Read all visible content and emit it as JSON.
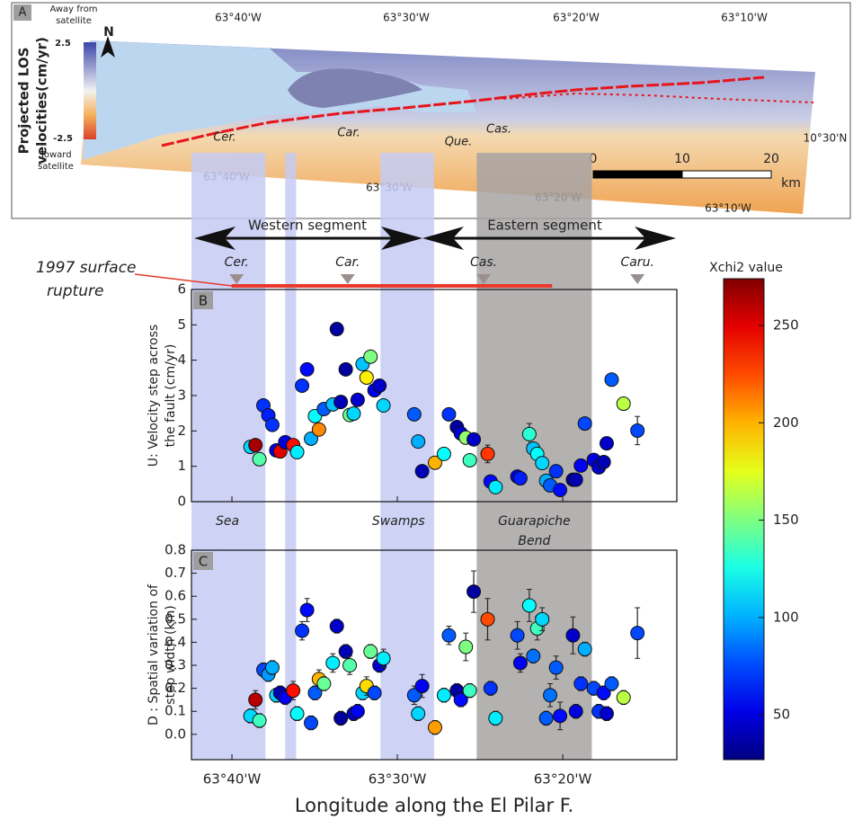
{
  "map": {
    "panel_label": "A",
    "los_title": [
      "Projected LOS",
      "velocities(cm/yr)"
    ],
    "away": [
      "Away from",
      "satellite"
    ],
    "toward": [
      "Toward",
      "satellite"
    ],
    "los_ticks": [
      2.5,
      -2.5
    ],
    "north": "N",
    "towns": [
      "Cer.",
      "Car.",
      "Que.",
      "Cas."
    ],
    "top_lon": [
      "63°40'W",
      "63°30'W",
      "63°20'W",
      "63°10'W"
    ],
    "bottom_lon": [
      "63°40'W",
      "63°30'W",
      "63°20'W",
      "63°10'W"
    ],
    "lat": "10°30'N",
    "scale_ticks": [
      0,
      10,
      20
    ],
    "scale_unit": "km"
  },
  "overlay": {
    "bands": [
      {
        "from": -63.7075,
        "to": -63.633,
        "color": "#c6cbf4",
        "label": [
          "Sea"
        ]
      },
      {
        "from": -63.613,
        "to": -63.602,
        "color": "#c6cbf4"
      },
      {
        "from": -63.517,
        "to": -63.463,
        "color": "#c6cbf4",
        "label": [
          "Swamps"
        ]
      },
      {
        "from": -63.42,
        "to": -63.304,
        "color": "#a7a3a3",
        "label": [
          "Guarapiche",
          "Bend"
        ]
      }
    ],
    "segments": [
      "Western segment",
      "Eastern segment"
    ],
    "towns": [
      {
        "name": "Cer.",
        "lon": -63.662
      },
      {
        "name": "Car.",
        "lon": -63.55
      },
      {
        "name": "Cas.",
        "lon": -63.413
      },
      {
        "name": "Caru.",
        "lon": -63.258
      }
    ],
    "rupture": {
      "label": [
        "1997 surface",
        "rupture"
      ],
      "from": -63.667,
      "to": -63.344,
      "color": "#e8392c"
    }
  },
  "colorbar": {
    "title": "Xchi2 value",
    "range": [
      27,
      274
    ],
    "ticks": [
      50,
      100,
      150,
      200,
      250
    ]
  },
  "xlabel": "Longitude along the El Pilar F.",
  "chart_data": [
    {
      "type": "scatter",
      "panel_label": "B",
      "ylabel": [
        "U: Velocity step across",
        "the fault (cm/yr)"
      ],
      "x": [
        -63.648,
        -63.643,
        -63.639,
        -63.635,
        -63.63,
        -63.626,
        -63.622,
        -63.618,
        -63.613,
        -63.605,
        -63.601,
        -63.596,
        -63.591,
        -63.587,
        -63.583,
        -63.579,
        -63.574,
        -63.565,
        -63.561,
        -63.557,
        -63.552,
        -63.548,
        -63.544,
        -63.54,
        -63.535,
        -63.531,
        -63.527,
        -63.523,
        -63.518,
        -63.514,
        -63.483,
        -63.479,
        -63.475,
        -63.462,
        -63.453,
        -63.448,
        -63.44,
        -63.436,
        -63.431,
        -63.427,
        -63.423,
        -63.409,
        -63.406,
        -63.401,
        -63.379,
        -63.376,
        -63.367,
        -63.363,
        -63.359,
        -63.354,
        -63.35,
        -63.346,
        -63.34,
        -63.336,
        -63.323,
        -63.32,
        -63.315,
        -63.311,
        -63.302,
        -63.297,
        -63.292,
        -63.289,
        -63.284,
        -63.272,
        -63.258
      ],
      "values": [
        1.55,
        1.6,
        1.2,
        2.72,
        2.44,
        2.17,
        1.45,
        1.42,
        1.68,
        1.6,
        1.4,
        3.28,
        3.74,
        1.78,
        2.42,
        2.04,
        2.62,
        2.75,
        4.88,
        2.82,
        3.74,
        2.45,
        2.49,
        2.88,
        3.89,
        3.51,
        4.1,
        3.15,
        3.28,
        2.72,
        2.47,
        1.7,
        0.86,
        1.1,
        1.35,
        2.47,
        2.11,
        1.93,
        1.81,
        1.17,
        1.76,
        1.35,
        0.57,
        0.41,
        0.71,
        0.66,
        1.91,
        1.5,
        1.35,
        1.09,
        0.59,
        0.46,
        0.86,
        0.33,
        0.62,
        0.62,
        1.02,
        2.21,
        1.18,
        0.97,
        1.12,
        1.65,
        3.45,
        2.77,
        2.01
      ],
      "errors": [
        0.1,
        0.1,
        0.1,
        0.1,
        0.1,
        0.1,
        0.1,
        0.1,
        0.1,
        0.1,
        0.1,
        0.15,
        0.15,
        0.1,
        0.1,
        0.1,
        0.1,
        0.1,
        0.12,
        0.1,
        0.1,
        0.15,
        0.1,
        0.1,
        0.1,
        0.15,
        0.1,
        0.1,
        0.1,
        0.1,
        0.12,
        0.1,
        0.1,
        0.1,
        0.1,
        0.1,
        0.1,
        0.1,
        0.1,
        0.12,
        0.1,
        0.25,
        0.1,
        0.1,
        0.1,
        0.1,
        0.3,
        0.1,
        0.1,
        0.1,
        0.1,
        0.1,
        0.12,
        0.1,
        0.1,
        0.1,
        0.1,
        0.15,
        0.1,
        0.1,
        0.1,
        0.1,
        0.12,
        0.15,
        0.4
      ],
      "color_values": [
        110,
        265,
        140,
        70,
        65,
        70,
        55,
        250,
        50,
        240,
        115,
        70,
        60,
        100,
        120,
        210,
        80,
        105,
        35,
        40,
        35,
        145,
        110,
        45,
        105,
        185,
        150,
        55,
        45,
        110,
        80,
        100,
        40,
        200,
        120,
        70,
        35,
        50,
        155,
        135,
        45,
        230,
        60,
        115,
        55,
        65,
        130,
        105,
        120,
        110,
        100,
        80,
        70,
        60,
        35,
        40,
        55,
        75,
        50,
        45,
        40,
        45,
        80,
        165,
        75
      ],
      "xlim": [
        -63.7075,
        -63.2183
      ],
      "ylim": [
        0,
        6
      ],
      "yticks": [
        0,
        1,
        2,
        3,
        4,
        5,
        6
      ]
    },
    {
      "type": "scatter",
      "panel_label": "C",
      "ylabel": [
        "D : Spatial variation of",
        "step width (km)"
      ],
      "x": [
        -63.648,
        -63.643,
        -63.639,
        -63.635,
        -63.63,
        -63.626,
        -63.622,
        -63.618,
        -63.613,
        -63.605,
        -63.601,
        -63.596,
        -63.591,
        -63.587,
        -63.583,
        -63.579,
        -63.574,
        -63.565,
        -63.561,
        -63.557,
        -63.552,
        -63.548,
        -63.544,
        -63.54,
        -63.535,
        -63.531,
        -63.527,
        -63.523,
        -63.518,
        -63.514,
        -63.483,
        -63.479,
        -63.475,
        -63.462,
        -63.453,
        -63.448,
        -63.44,
        -63.436,
        -63.431,
        -63.427,
        -63.423,
        -63.409,
        -63.406,
        -63.401,
        -63.379,
        -63.376,
        -63.367,
        -63.363,
        -63.359,
        -63.354,
        -63.35,
        -63.346,
        -63.34,
        -63.336,
        -63.323,
        -63.32,
        -63.315,
        -63.311,
        -63.302,
        -63.297,
        -63.292,
        -63.289,
        -63.284,
        -63.272,
        -63.258
      ],
      "values": [
        0.08,
        0.15,
        0.06,
        0.28,
        0.26,
        0.29,
        0.17,
        0.18,
        0.16,
        0.19,
        0.09,
        0.45,
        0.54,
        0.05,
        0.18,
        0.24,
        0.22,
        0.31,
        0.47,
        0.07,
        0.36,
        0.3,
        0.09,
        0.1,
        0.18,
        0.21,
        0.36,
        0.18,
        0.3,
        0.33,
        0.17,
        0.09,
        0.21,
        0.03,
        0.17,
        0.43,
        0.19,
        0.15,
        0.38,
        0.19,
        0.62,
        0.5,
        0.2,
        0.07,
        0.43,
        0.31,
        0.56,
        0.34,
        0.46,
        0.5,
        0.07,
        0.17,
        0.29,
        0.08,
        0.43,
        0.1,
        0.22,
        0.37,
        0.2,
        0.1,
        0.18,
        0.09,
        0.22,
        0.16,
        0.44
      ],
      "errors": [
        0.03,
        0.04,
        0.03,
        0.03,
        0.03,
        0.03,
        0.03,
        0.03,
        0.03,
        0.04,
        0.03,
        0.04,
        0.05,
        0.03,
        0.03,
        0.04,
        0.03,
        0.04,
        0.03,
        0.03,
        0.03,
        0.04,
        0.03,
        0.03,
        0.03,
        0.04,
        0.03,
        0.03,
        0.03,
        0.04,
        0.04,
        0.03,
        0.05,
        0.03,
        0.03,
        0.04,
        0.03,
        0.03,
        0.06,
        0.03,
        0.09,
        0.09,
        0.03,
        0.03,
        0.06,
        0.04,
        0.07,
        0.03,
        0.05,
        0.05,
        0.03,
        0.05,
        0.05,
        0.06,
        0.08,
        0.03,
        0.03,
        0.03,
        0.03,
        0.03,
        0.03,
        0.03,
        0.03,
        0.03,
        0.11
      ],
      "color_values": [
        110,
        260,
        135,
        75,
        95,
        100,
        110,
        40,
        55,
        240,
        120,
        70,
        60,
        75,
        80,
        200,
        145,
        115,
        45,
        35,
        40,
        140,
        45,
        55,
        110,
        190,
        145,
        75,
        45,
        115,
        80,
        110,
        55,
        205,
        115,
        80,
        35,
        60,
        150,
        135,
        35,
        225,
        70,
        115,
        75,
        55,
        120,
        85,
        135,
        110,
        80,
        85,
        80,
        60,
        45,
        50,
        70,
        100,
        75,
        70,
        60,
        45,
        80,
        165,
        75
      ],
      "xlim": [
        -63.7075,
        -63.2183
      ],
      "ylim": [
        -0.11,
        0.8
      ],
      "xticks": [
        {
          "value": -63.6667,
          "label": "63°40'W"
        },
        {
          "value": -63.5,
          "label": "63°30'W"
        },
        {
          "value": -63.3333,
          "label": "63°20'W"
        }
      ],
      "yticks": [
        {
          "value": 0,
          "label": "0.0"
        },
        0.1,
        0.2,
        0.3,
        0.4,
        0.5,
        0.6,
        0.7,
        0.8
      ]
    }
  ]
}
